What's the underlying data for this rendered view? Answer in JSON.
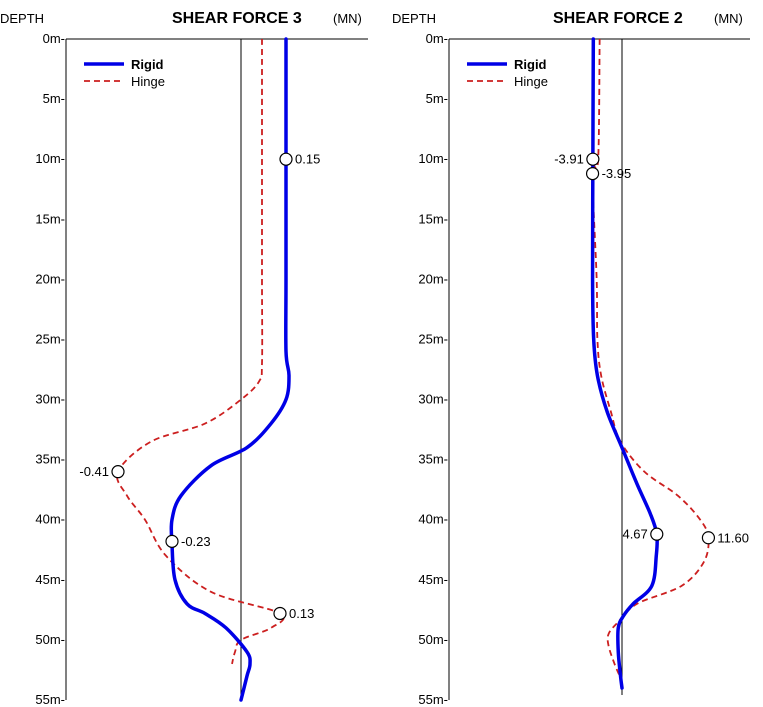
{
  "chart_data": [
    {
      "type": "line",
      "depth_header": "DEPTH",
      "title": "SHEAR FORCE 3",
      "unit": "(MN)",
      "y_tick_labels": [
        "0m-",
        "5m-",
        "10m-",
        "15m-",
        "20m-",
        "25m-",
        "30m-",
        "35m-",
        "40m-",
        "45m-",
        "50m-",
        "55m-"
      ],
      "ylim": [
        0,
        55
      ],
      "y_reversed": true,
      "legend_position": "top-left",
      "series": [
        {
          "name": "Rigid",
          "color": "#0000e6",
          "style": "solid",
          "points": [
            [
              0.15,
              0
            ],
            [
              0.15,
              10
            ],
            [
              0.15,
              20
            ],
            [
              0.15,
              26
            ],
            [
              0.16,
              28
            ],
            [
              0.15,
              30
            ],
            [
              0.1,
              32
            ],
            [
              0.02,
              34
            ],
            [
              -0.1,
              35.5
            ],
            [
              -0.2,
              38
            ],
            [
              -0.23,
              40
            ],
            [
              -0.23,
              42
            ],
            [
              -0.22,
              45
            ],
            [
              -0.18,
              47
            ],
            [
              -0.12,
              47.8
            ],
            [
              -0.05,
              49
            ],
            [
              0.02,
              51
            ],
            [
              0.03,
              52
            ],
            [
              0.02,
              53
            ],
            [
              0.0,
              55
            ]
          ]
        },
        {
          "name": "Hinge",
          "color": "#cc1f1f",
          "style": "dashed",
          "points": [
            [
              0.07,
              0
            ],
            [
              0.07,
              10
            ],
            [
              0.07,
              20
            ],
            [
              0.07,
              27
            ],
            [
              0.06,
              28.5
            ],
            [
              0.0,
              30
            ],
            [
              -0.12,
              32
            ],
            [
              -0.3,
              33.5
            ],
            [
              -0.41,
              36
            ],
            [
              -0.38,
              38
            ],
            [
              -0.32,
              40
            ],
            [
              -0.25,
              43
            ],
            [
              -0.1,
              46
            ],
            [
              0.13,
              47.8
            ],
            [
              0.1,
              49
            ],
            [
              0.0,
              50
            ],
            [
              -0.02,
              51
            ],
            [
              -0.03,
              52
            ]
          ]
        }
      ],
      "annotations": [
        {
          "label": "0.15",
          "x": 0.15,
          "y": 10
        },
        {
          "label": "-0.41",
          "x": -0.41,
          "y": 36
        },
        {
          "label": "-0.23",
          "x": -0.23,
          "y": 41.8
        },
        {
          "label": "0.13",
          "x": 0.13,
          "y": 47.8
        }
      ]
    },
    {
      "type": "line",
      "depth_header": "DEPTH",
      "title": "SHEAR FORCE 2",
      "unit": "(MN)",
      "y_tick_labels": [
        "0m-",
        "5m-",
        "10m-",
        "15m-",
        "20m-",
        "25m-",
        "30m-",
        "35m-",
        "40m-",
        "45m-",
        "50m-",
        "55m-"
      ],
      "ylim": [
        0,
        55
      ],
      "y_reversed": true,
      "legend_position": "top-left",
      "series": [
        {
          "name": "Rigid",
          "color": "#0000e6",
          "style": "solid",
          "points": [
            [
              -3.85,
              0
            ],
            [
              -3.91,
              10
            ],
            [
              -3.95,
              20
            ],
            [
              -3.8,
              25
            ],
            [
              -3.3,
              28
            ],
            [
              -2.0,
              31
            ],
            [
              0.0,
              34
            ],
            [
              2.0,
              37
            ],
            [
              3.8,
              39.5
            ],
            [
              4.67,
              41.2
            ],
            [
              4.6,
              43
            ],
            [
              4.0,
              45.5
            ],
            [
              1.5,
              47
            ],
            [
              0.2,
              48
            ],
            [
              -0.5,
              49
            ],
            [
              -0.5,
              51
            ],
            [
              -0.2,
              53
            ],
            [
              0.0,
              54
            ]
          ]
        },
        {
          "name": "Hinge",
          "color": "#cc1f1f",
          "style": "dashed",
          "points": [
            [
              -3.0,
              0
            ],
            [
              -3.2,
              10
            ],
            [
              -3.95,
              11.2
            ],
            [
              -3.4,
              20
            ],
            [
              -3.3,
              25
            ],
            [
              -2.8,
              28
            ],
            [
              -1.5,
              31
            ],
            [
              -0.2,
              33.5
            ],
            [
              3.0,
              36
            ],
            [
              7.5,
              38
            ],
            [
              10.5,
              40
            ],
            [
              11.6,
              41.5
            ],
            [
              11.0,
              43.5
            ],
            [
              8.0,
              45.5
            ],
            [
              2.0,
              47
            ],
            [
              -0.5,
              48.5
            ],
            [
              -1.8,
              49.5
            ],
            [
              -1.8,
              50.5
            ],
            [
              -1.0,
              52
            ],
            [
              -0.3,
              53
            ]
          ]
        }
      ],
      "annotations": [
        {
          "label": "-3.91",
          "x": -3.91,
          "y": 10
        },
        {
          "label": "-3.95",
          "x": -3.95,
          "y": 11.2
        },
        {
          "label": "4.67",
          "x": 4.67,
          "y": 41.2
        },
        {
          "label": "11.60",
          "x": 11.6,
          "y": 41.5
        }
      ]
    }
  ]
}
